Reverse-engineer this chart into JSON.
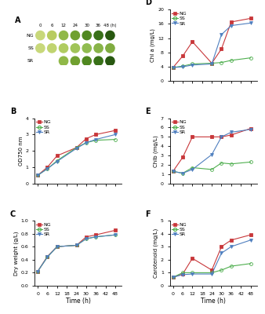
{
  "time": [
    0,
    6,
    12,
    24,
    30,
    36,
    48
  ],
  "OD750": {
    "NG": [
      0.5,
      1.0,
      1.7,
      2.2,
      2.75,
      3.0,
      3.25
    ],
    "SS": [
      0.5,
      0.9,
      1.4,
      2.2,
      2.5,
      2.65,
      2.7
    ],
    "SR": [
      0.5,
      0.9,
      1.35,
      2.15,
      2.5,
      2.7,
      3.0
    ]
  },
  "DryWeight": {
    "NG": [
      0.22,
      0.45,
      0.6,
      0.62,
      0.75,
      0.78,
      0.85
    ],
    "SS": [
      0.22,
      0.44,
      0.6,
      0.62,
      0.72,
      0.75,
      0.78
    ],
    "SR": [
      0.22,
      0.44,
      0.6,
      0.62,
      0.72,
      0.75,
      0.78
    ]
  },
  "ChlA": {
    "NG": [
      3.8,
      7.0,
      11.0,
      5.0,
      9.0,
      16.5,
      17.5
    ],
    "SS": [
      3.8,
      4.2,
      4.8,
      5.0,
      5.2,
      5.8,
      6.5
    ],
    "SR": [
      3.8,
      4.0,
      4.5,
      4.8,
      13.0,
      15.5,
      16.2
    ]
  },
  "ChlB": {
    "NG": [
      1.3,
      2.8,
      5.0,
      5.0,
      5.0,
      5.2,
      5.9
    ],
    "SS": [
      1.3,
      1.1,
      1.7,
      1.5,
      2.2,
      2.1,
      2.3
    ],
    "SR": [
      1.3,
      1.1,
      1.5,
      3.1,
      5.0,
      5.5,
      5.8
    ]
  },
  "Carotenoid": {
    "NG": [
      0.65,
      0.9,
      2.1,
      1.2,
      3.0,
      3.5,
      3.9
    ],
    "SS": [
      0.65,
      1.0,
      1.0,
      1.0,
      1.2,
      1.5,
      1.7
    ],
    "SR": [
      0.65,
      0.85,
      0.9,
      0.9,
      2.5,
      3.0,
      3.5
    ]
  },
  "colors": {
    "NG": "#c8373a",
    "SS": "#4faf4f",
    "SR": "#4f7fbf"
  },
  "ng_circle_colors": [
    "#c8d87a",
    "#b8cc60",
    "#90b848",
    "#70a030",
    "#508820",
    "#387018",
    "#285810"
  ],
  "ss_circle_colors": [
    "#c8d87a",
    "#c0d470",
    "#b0cc60",
    "#a0c458",
    "#90bc50",
    "#88b448",
    "#80ac40"
  ],
  "sr_circle_colors": [
    "#90b848",
    "#70a030",
    "#508820",
    "#387018",
    "#285810"
  ],
  "time_labels": [
    "0",
    "6",
    "12",
    "24",
    "30",
    "36",
    "48 (h)"
  ]
}
